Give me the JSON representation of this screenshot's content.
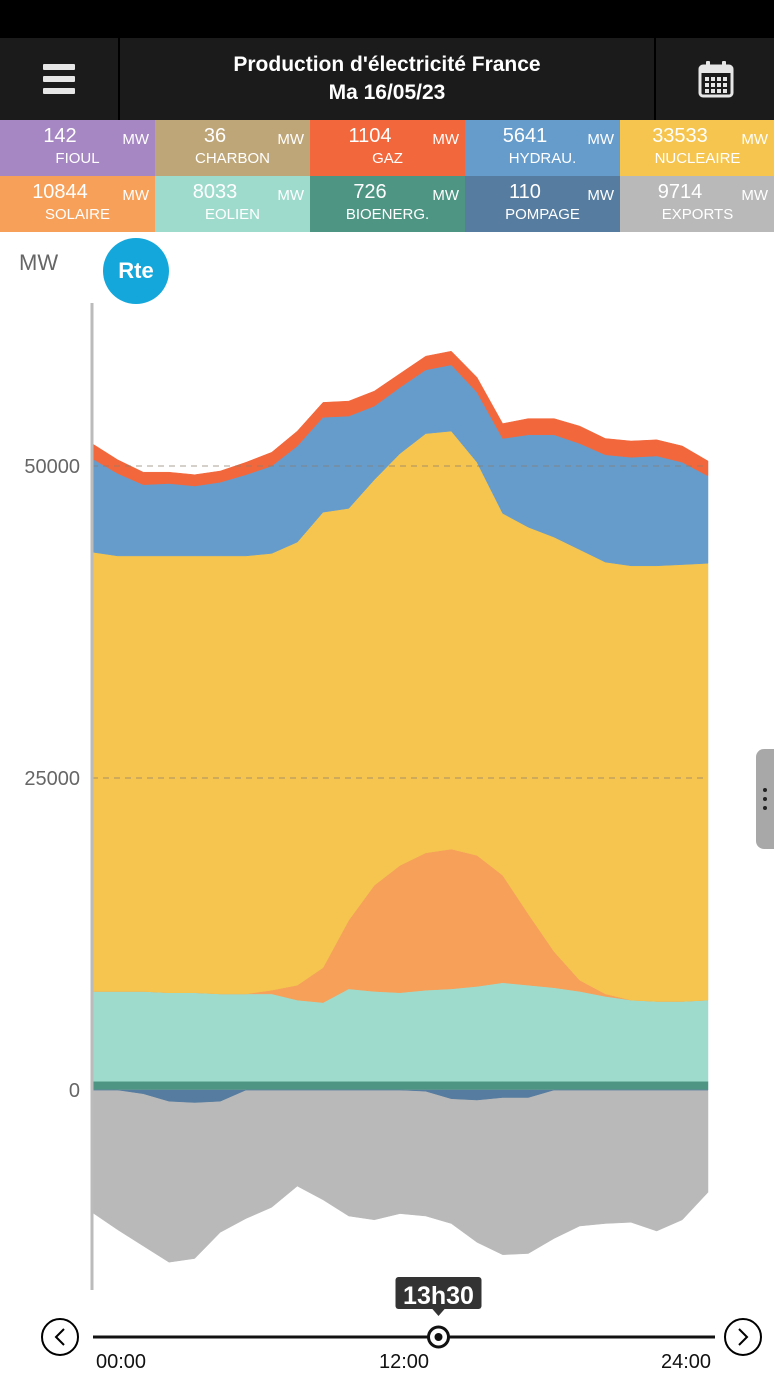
{
  "header": {
    "title": "Production d'électricité France",
    "date": "Ma 16/05/23"
  },
  "tiles": [
    {
      "value": "142",
      "unit": "MW",
      "name": "FIOUL",
      "color": "#a687c3",
      "text_color": "#ffffff"
    },
    {
      "value": "36",
      "unit": "MW",
      "name": "CHARBON",
      "color": "#bfa678",
      "text_color": "#ffffff"
    },
    {
      "value": "1104",
      "unit": "MW",
      "name": "GAZ",
      "color": "#f2673b",
      "text_color": "#ffffff"
    },
    {
      "value": "5641",
      "unit": "MW",
      "name": "HYDRAU.",
      "color": "#669ccc",
      "text_color": "#ffffff"
    },
    {
      "value": "33533",
      "unit": "MW",
      "name": "NUCLEAIRE",
      "color": "#f5c54f",
      "text_color": "#ffffff"
    },
    {
      "value": "10844",
      "unit": "MW",
      "name": "SOLAIRE",
      "color": "#f6a05a",
      "text_color": "#ffffff"
    },
    {
      "value": "8033",
      "unit": "MW",
      "name": "EOLIEN",
      "color": "#9fdbcc",
      "text_color": "#ffffff"
    },
    {
      "value": "726",
      "unit": "MW",
      "name": "BIOENERG.",
      "color": "#4e9683",
      "text_color": "#ffffff"
    },
    {
      "value": "110",
      "unit": "MW",
      "name": "POMPAGE",
      "color": "#567c9f",
      "text_color": "#ffffff"
    },
    {
      "value": "9714",
      "unit": "MW",
      "name": "EXPORTS",
      "color": "#b9b9b9",
      "text_color": "#ffffff"
    }
  ],
  "logo_text": "Rte",
  "timeline": {
    "current_time": "13h30",
    "current_hour": 13.5,
    "start_label": "00:00",
    "mid_label": "12:00",
    "end_label": "24:00"
  },
  "chart_data": {
    "type": "area",
    "title": "",
    "ylabel": "MW",
    "xlabel": "",
    "ylim": [
      -16000,
      63000
    ],
    "xlim": [
      0,
      24
    ],
    "yticks": [
      0,
      25000,
      50000
    ],
    "ytick_labels": [
      "0",
      "25000",
      "50000"
    ],
    "grid": "dashed horizontal at 25000 and 50000",
    "x": [
      0,
      1,
      2,
      3,
      4,
      5,
      6,
      7,
      8,
      9,
      10,
      11,
      12,
      13,
      14,
      15,
      16,
      17,
      18,
      19,
      20,
      21,
      22,
      23,
      24
    ],
    "series": [
      {
        "name": "BIOENERG.",
        "color": "#4e9683",
        "values": [
          700,
          700,
          700,
          700,
          700,
          700,
          700,
          700,
          700,
          700,
          700,
          700,
          700,
          700,
          700,
          700,
          700,
          700,
          700,
          700,
          700,
          700,
          700,
          700,
          700
        ]
      },
      {
        "name": "EOLIEN",
        "color": "#9fdbcc",
        "values": [
          7200,
          7200,
          7200,
          7100,
          7100,
          7000,
          7000,
          7000,
          6500,
          6300,
          7400,
          7200,
          7100,
          7300,
          7400,
          7600,
          7900,
          7700,
          7500,
          7200,
          6800,
          6500,
          6400,
          6400,
          6500
        ]
      },
      {
        "name": "SOLAIRE",
        "color": "#f6a05a",
        "values": [
          0,
          0,
          0,
          0,
          0,
          0,
          0,
          300,
          1200,
          2800,
          5500,
          8500,
          10200,
          11000,
          11200,
          10500,
          8600,
          5700,
          2900,
          900,
          200,
          0,
          0,
          0,
          0
        ]
      },
      {
        "name": "NUCLEAIRE",
        "color": "#f5c54f",
        "values": [
          35200,
          34900,
          34900,
          35000,
          35000,
          35100,
          35100,
          35000,
          35500,
          36500,
          33000,
          32500,
          33000,
          33600,
          33500,
          31500,
          29000,
          31000,
          33200,
          34500,
          34600,
          34800,
          34900,
          35000,
          35000
        ]
      },
      {
        "name": "HYDRAU.",
        "color": "#669ccc",
        "values": [
          7500,
          6600,
          5700,
          5800,
          5600,
          5900,
          6500,
          7000,
          7700,
          7600,
          7400,
          5900,
          5300,
          5100,
          5300,
          5600,
          6000,
          7400,
          8200,
          8500,
          8600,
          8700,
          8800,
          8200,
          7000
        ]
      },
      {
        "name": "GAZ",
        "color": "#f2673b",
        "values": [
          1200,
          1100,
          1000,
          900,
          900,
          900,
          1000,
          1100,
          1200,
          1200,
          1200,
          1200,
          1100,
          1100,
          1100,
          1200,
          1200,
          1300,
          1300,
          1400,
          1300,
          1300,
          1300,
          1300,
          1200
        ]
      },
      {
        "name": "EXPORTS",
        "color": "#b9b9b9",
        "values": [
          -9800,
          -11200,
          -12500,
          -13800,
          -13500,
          -11400,
          -10300,
          -9400,
          -7700,
          -8800,
          -10100,
          -10400,
          -9900,
          -10100,
          -10700,
          -12200,
          -13200,
          -13100,
          -11900,
          -10900,
          -10700,
          -10600,
          -11300,
          -10400,
          -8200
        ]
      },
      {
        "name": "POMPAGE",
        "color": "#567c9f",
        "values": [
          0,
          0,
          -300,
          -900,
          -1000,
          -900,
          0,
          0,
          0,
          0,
          0,
          0,
          0,
          -100,
          -700,
          -800,
          -600,
          -600,
          0,
          0,
          0,
          0,
          0,
          0,
          0
        ]
      }
    ]
  }
}
